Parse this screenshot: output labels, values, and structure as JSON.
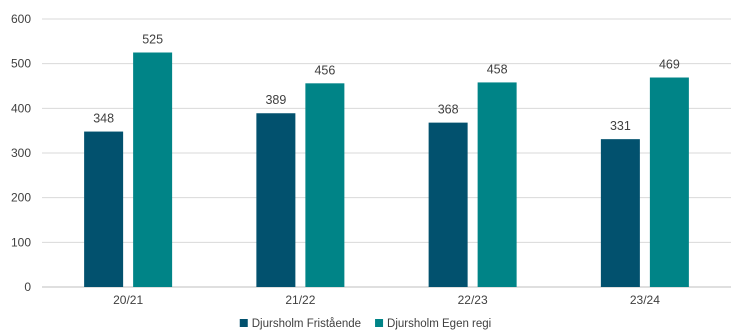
{
  "chart_data": {
    "type": "bar",
    "title": "",
    "xlabel": "",
    "ylabel": "",
    "categories": [
      "20/21",
      "21/22",
      "22/23",
      "23/24"
    ],
    "series": [
      {
        "name": "Djursholm Fristående",
        "values": [
          348,
          389,
          368,
          331
        ],
        "color": "#02516E"
      },
      {
        "name": "Djursholm Egen regi",
        "values": [
          525,
          456,
          458,
          469
        ],
        "color": "#008487"
      }
    ],
    "ylim": [
      0,
      600
    ],
    "yticks": [
      0,
      100,
      200,
      300,
      400,
      500,
      600
    ],
    "grid": true,
    "legend": "bottom-center",
    "colors": {
      "grid": "#D9D9D9",
      "axis": "#BFBFBF",
      "text": "#404040"
    }
  }
}
